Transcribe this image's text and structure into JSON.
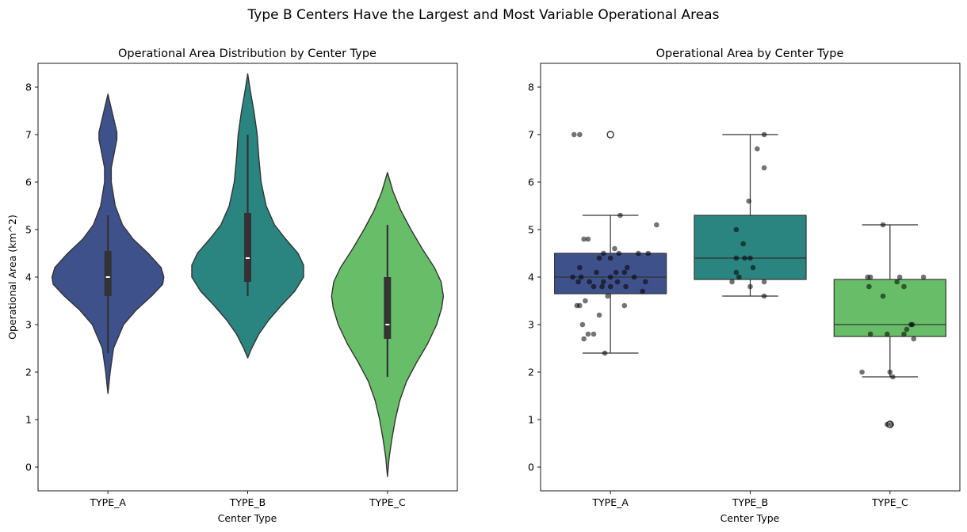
{
  "suptitle": "Type B Centers Have the Largest and Most Variable Operational Areas",
  "colors": {
    "TYPE_A": "#3f518a",
    "TYPE_B": "#2a8580",
    "TYPE_C": "#68be68",
    "edge": "#333333",
    "point": "#000000"
  },
  "chart_data": [
    {
      "type": "violin",
      "title": "Operational Area Distribution by Center Type",
      "xlabel": "Center Type",
      "ylabel": "Operational Area (km^2)",
      "categories": [
        "TYPE_A",
        "TYPE_B",
        "TYPE_C"
      ],
      "ylim": [
        -0.5,
        8.5
      ],
      "yticks": [
        0,
        1,
        2,
        3,
        4,
        5,
        6,
        7,
        8
      ],
      "grid": false,
      "violins": [
        {
          "category": "TYPE_A",
          "range": [
            1.55,
            7.85
          ],
          "median": 4.0,
          "q1": 3.6,
          "q3": 4.55,
          "whisker_low": 2.4,
          "whisker_high": 5.3,
          "profile": [
            [
              1.55,
              0
            ],
            [
              2.0,
              0.04
            ],
            [
              2.5,
              0.1
            ],
            [
              3.0,
              0.28
            ],
            [
              3.3,
              0.5
            ],
            [
              3.6,
              0.78
            ],
            [
              3.85,
              0.98
            ],
            [
              4.0,
              1.0
            ],
            [
              4.2,
              0.95
            ],
            [
              4.5,
              0.72
            ],
            [
              4.8,
              0.45
            ],
            [
              5.1,
              0.26
            ],
            [
              5.5,
              0.13
            ],
            [
              6.0,
              0.06
            ],
            [
              6.3,
              0.06
            ],
            [
              6.6,
              0.11
            ],
            [
              6.9,
              0.16
            ],
            [
              7.05,
              0.16
            ],
            [
              7.3,
              0.11
            ],
            [
              7.6,
              0.05
            ],
            [
              7.85,
              0
            ]
          ]
        },
        {
          "category": "TYPE_B",
          "range": [
            2.3,
            8.28
          ],
          "median": 4.4,
          "q1": 3.9,
          "q3": 5.35,
          "whisker_low": 3.6,
          "whisker_high": 7.0,
          "profile": [
            [
              2.3,
              0
            ],
            [
              2.5,
              0.07
            ],
            [
              2.8,
              0.2
            ],
            [
              3.1,
              0.38
            ],
            [
              3.4,
              0.6
            ],
            [
              3.7,
              0.84
            ],
            [
              4.0,
              1.0
            ],
            [
              4.25,
              1.0
            ],
            [
              4.5,
              0.9
            ],
            [
              4.8,
              0.68
            ],
            [
              5.1,
              0.48
            ],
            [
              5.5,
              0.33
            ],
            [
              6.0,
              0.24
            ],
            [
              6.5,
              0.2
            ],
            [
              7.0,
              0.17
            ],
            [
              7.5,
              0.11
            ],
            [
              7.9,
              0.05
            ],
            [
              8.28,
              0
            ]
          ]
        },
        {
          "category": "TYPE_C",
          "range": [
            -0.2,
            6.2
          ],
          "median": 3.0,
          "q1": 2.7,
          "q3": 4.0,
          "whisker_low": 1.9,
          "whisker_high": 5.1,
          "profile": [
            [
              -0.2,
              0
            ],
            [
              0.2,
              0.03
            ],
            [
              0.6,
              0.08
            ],
            [
              1.0,
              0.14
            ],
            [
              1.4,
              0.22
            ],
            [
              1.8,
              0.34
            ],
            [
              2.2,
              0.52
            ],
            [
              2.6,
              0.72
            ],
            [
              3.0,
              0.88
            ],
            [
              3.35,
              0.97
            ],
            [
              3.6,
              1.0
            ],
            [
              3.9,
              0.96
            ],
            [
              4.2,
              0.84
            ],
            [
              4.6,
              0.62
            ],
            [
              5.0,
              0.42
            ],
            [
              5.4,
              0.24
            ],
            [
              5.8,
              0.1
            ],
            [
              6.2,
              0
            ]
          ]
        }
      ]
    },
    {
      "type": "box",
      "title": "Operational Area by Center Type",
      "xlabel": "Center Type",
      "categories": [
        "TYPE_A",
        "TYPE_B",
        "TYPE_C"
      ],
      "ylim": [
        -0.5,
        8.5
      ],
      "yticks": [
        0,
        1,
        2,
        3,
        4,
        5,
        6,
        7,
        8
      ],
      "grid": false,
      "boxes": [
        {
          "category": "TYPE_A",
          "q1": 3.65,
          "median": 4.0,
          "q3": 4.5,
          "whisker_low": 2.4,
          "whisker_high": 5.3,
          "outliers": [
            7.0
          ]
        },
        {
          "category": "TYPE_B",
          "q1": 3.95,
          "median": 4.4,
          "q3": 5.3,
          "whisker_low": 3.6,
          "whisker_high": 7.0,
          "outliers": []
        },
        {
          "category": "TYPE_C",
          "q1": 2.75,
          "median": 3.0,
          "q3": 3.95,
          "whisker_low": 1.9,
          "whisker_high": 5.1,
          "outliers": [
            0.9
          ]
        }
      ],
      "points": [
        {
          "category": "TYPE_A",
          "values": [
            7.0,
            7.0,
            5.3,
            5.1,
            4.8,
            4.8,
            4.6,
            4.5,
            4.5,
            4.5,
            4.5,
            4.4,
            4.4,
            4.2,
            4.2,
            4.1,
            4.1,
            4.1,
            4.0,
            4.0,
            4.0,
            4.0,
            3.9,
            3.9,
            3.9,
            3.9,
            3.9,
            3.8,
            3.8,
            3.8,
            3.8,
            3.7,
            3.6,
            3.5,
            3.4,
            3.4,
            3.4,
            3.2,
            3.0,
            2.8,
            2.8,
            2.7,
            2.4
          ],
          "jitter": [
            -0.26,
            -0.22,
            0.07,
            0.33,
            -0.19,
            -0.16,
            0.03,
            -0.05,
            0.06,
            0.2,
            0.27,
            -0.08,
            0.0,
            -0.22,
            0.12,
            -0.1,
            0.04,
            0.1,
            -0.27,
            -0.21,
            0.0,
            0.17,
            -0.23,
            -0.15,
            -0.05,
            0.05,
            0.25,
            -0.12,
            -0.06,
            0.0,
            0.11,
            0.23,
            -0.02,
            -0.18,
            -0.24,
            -0.22,
            0.1,
            -0.08,
            -0.2,
            -0.16,
            -0.12,
            -0.19,
            -0.04
          ]
        },
        {
          "category": "TYPE_B",
          "values": [
            7.0,
            6.7,
            6.3,
            5.6,
            5.0,
            4.7,
            4.4,
            4.4,
            4.4,
            4.2,
            4.1,
            4.0,
            3.9,
            3.9,
            3.8,
            3.6
          ],
          "jitter": [
            0.1,
            0.05,
            0.1,
            -0.01,
            -0.1,
            -0.05,
            -0.1,
            -0.04,
            0.0,
            0.02,
            -0.1,
            -0.08,
            -0.13,
            0.1,
            0.0,
            0.1
          ]
        },
        {
          "category": "TYPE_C",
          "values": [
            5.1,
            4.0,
            4.0,
            4.0,
            4.0,
            3.9,
            3.8,
            3.8,
            3.6,
            3.0,
            3.0,
            2.9,
            2.8,
            2.8,
            2.8,
            2.7,
            2.0,
            2.0,
            1.9,
            0.9,
            0.9
          ],
          "jitter": [
            -0.05,
            -0.14,
            -0.16,
            0.07,
            0.24,
            0.05,
            -0.15,
            0.1,
            -0.05,
            0.16,
            0.15,
            0.12,
            -0.14,
            -0.02,
            0.1,
            0.17,
            -0.2,
            0.0,
            0.02,
            -0.02,
            0.01
          ]
        }
      ]
    }
  ]
}
